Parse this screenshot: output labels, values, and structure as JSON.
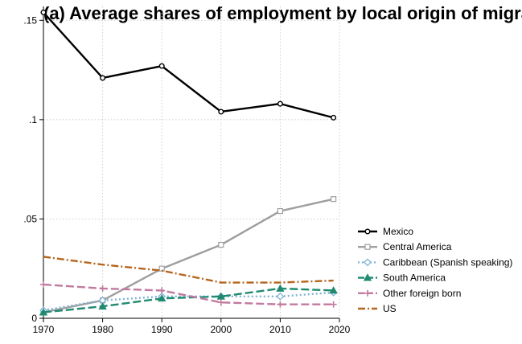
{
  "chart_data": {
    "type": "line",
    "title": "(a) Average shares of employment by local origin of migrants",
    "xlabel": "",
    "ylabel": "",
    "xlim": [
      1970,
      2020
    ],
    "ylim": [
      0,
      0.157
    ],
    "x_ticks": [
      1970,
      1980,
      1990,
      2000,
      2010,
      2020
    ],
    "y_ticks": [
      {
        "value": 0,
        "label": "0"
      },
      {
        "value": 0.05,
        "label": ".05"
      },
      {
        "value": 0.1,
        "label": ".1"
      },
      {
        "value": 0.15,
        "label": ".15"
      }
    ],
    "grid": true,
    "legend_position": "right",
    "x": [
      1970,
      1980,
      1990,
      2000,
      2010,
      2019
    ],
    "series": [
      {
        "name": "Mexico",
        "color": "#000000",
        "dash": "solid",
        "marker": "circle-hollow",
        "values": [
          0.154,
          0.121,
          0.127,
          0.104,
          0.108,
          0.101
        ]
      },
      {
        "name": "Central America",
        "color": "#9e9e9e",
        "dash": "solid",
        "marker": "square-hollow",
        "values": [
          0.003,
          0.009,
          0.025,
          0.037,
          0.054,
          0.06
        ]
      },
      {
        "name": "Caribbean (Spanish speaking)",
        "color": "#7fb3d5",
        "dash": "dot",
        "marker": "diamond-hollow",
        "values": [
          0.004,
          0.009,
          0.011,
          0.011,
          0.011,
          0.013
        ]
      },
      {
        "name": "South America",
        "color": "#1f8a70",
        "dash": "longdash",
        "marker": "triangle",
        "values": [
          0.003,
          0.006,
          0.01,
          0.011,
          0.015,
          0.014
        ]
      },
      {
        "name": "Other foreign born",
        "color": "#c2799f",
        "dash": "longdash",
        "marker": "plus",
        "values": [
          0.017,
          0.015,
          0.014,
          0.008,
          0.007,
          0.007
        ]
      },
      {
        "name": "US",
        "color": "#b5651d",
        "dash": "dashdot",
        "marker": "none",
        "values": [
          0.031,
          0.027,
          0.024,
          0.018,
          0.018,
          0.019
        ]
      }
    ]
  }
}
